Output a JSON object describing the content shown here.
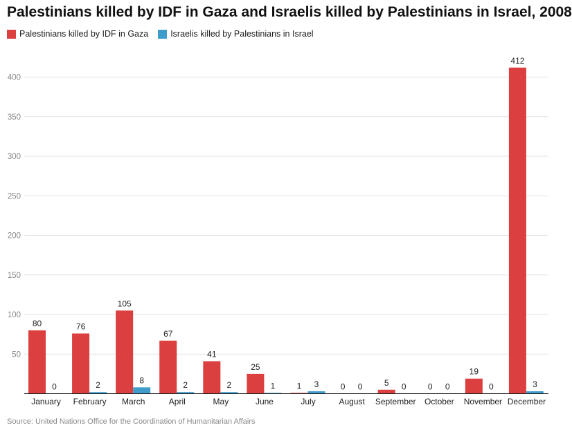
{
  "chart_data": {
    "type": "bar",
    "title": "Palestinians killed by IDF in Gaza and Israelis killed by Palestinians in Israel, 2008",
    "categories": [
      "January",
      "February",
      "March",
      "April",
      "May",
      "June",
      "July",
      "August",
      "September",
      "October",
      "November",
      "December"
    ],
    "series": [
      {
        "name": "Palestinians killed by IDF in Gaza",
        "color": "#dc3f3f",
        "values": [
          80,
          76,
          105,
          67,
          41,
          25,
          1,
          0,
          5,
          0,
          19,
          412
        ]
      },
      {
        "name": "Israelis killed by Palestinians in Israel",
        "color": "#3f9dcc",
        "values": [
          0,
          2,
          8,
          2,
          2,
          1,
          3,
          0,
          0,
          0,
          0,
          3
        ]
      }
    ],
    "y_ticks": [
      "50",
      "100",
      "150",
      "200",
      "250",
      "300",
      "350",
      "400"
    ],
    "ylim": [
      0,
      420
    ],
    "grid": true,
    "legend": "top-left",
    "source": "Source: United Nations Office for the Coordination of Humanitarian Affairs"
  }
}
